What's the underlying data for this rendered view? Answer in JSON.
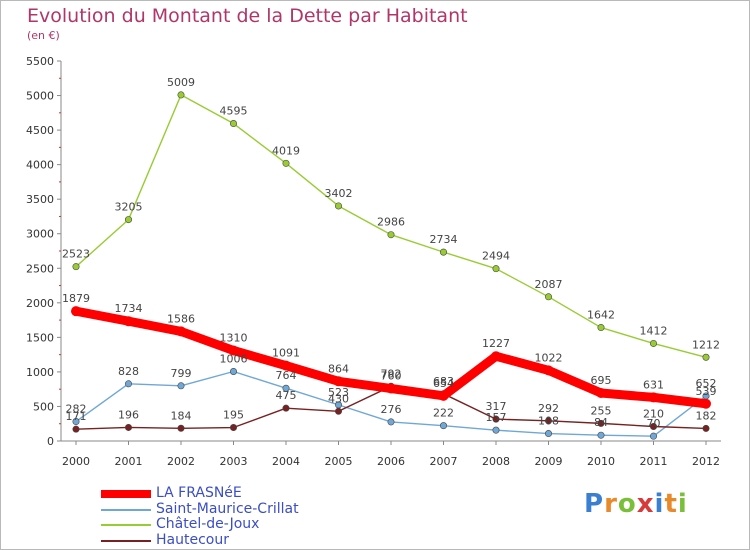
{
  "chart_data": {
    "type": "line",
    "title": "Evolution du Montant de la Dette par Habitant",
    "subtitle": "(en €)",
    "x": [
      "2000",
      "2001",
      "2002",
      "2003",
      "2004",
      "2005",
      "2006",
      "2007",
      "2008",
      "2009",
      "2010",
      "2011",
      "2012"
    ],
    "ylim": [
      0,
      5500
    ],
    "yticks": [
      "0",
      "500",
      "1000",
      "1500",
      "2000",
      "2500",
      "3000",
      "3500",
      "4000",
      "4500",
      "5000",
      "5500"
    ],
    "grid": false,
    "legend_position": "bottom-left",
    "series": [
      {
        "name": "LA FRASNéE",
        "color": "#ff0000",
        "values": [
          1879,
          1734,
          1586,
          1310,
          1091,
          864,
          760,
          654,
          1227,
          1022,
          695,
          631,
          539
        ],
        "labels": [
          "1879",
          "1734",
          "1586",
          "1310",
          "1091",
          "864",
          "760",
          "654",
          "1227",
          "1022",
          "695",
          "631",
          "539"
        ]
      },
      {
        "name": "Saint-Maurice-Crillat",
        "color": "#6fa8d6",
        "values": [
          282,
          828,
          799,
          1006,
          764,
          523,
          276,
          222,
          157,
          108,
          84,
          70,
          652
        ],
        "labels": [
          "282",
          "828",
          "799",
          "1006",
          "764",
          "523",
          "276",
          "222",
          "157",
          "108",
          "84",
          "70",
          "652"
        ]
      },
      {
        "name": "Châtel-de-Joux",
        "color": "#99cc33",
        "values": [
          2523,
          3205,
          5009,
          4595,
          4019,
          3402,
          2986,
          2734,
          2494,
          2087,
          1642,
          1412,
          1212
        ],
        "labels": [
          "2523",
          "3205",
          "5009",
          "4595",
          "4019",
          "3402",
          "2986",
          "2734",
          "2494",
          "2087",
          "1642",
          "1412",
          "1212"
        ]
      },
      {
        "name": "Hautecour",
        "color": "#772222",
        "values": [
          171,
          196,
          184,
          195,
          475,
          430,
          792,
          683,
          317,
          292,
          255,
          210,
          182
        ],
        "labels": [
          "171",
          "196",
          "184",
          "195",
          "475",
          "430",
          "792",
          "683",
          "317",
          "292",
          "255",
          "210",
          "182"
        ]
      }
    ]
  },
  "brand": {
    "letters": [
      "P",
      "r",
      "o",
      "x",
      "i",
      "t",
      "i"
    ],
    "colors": [
      "#3a7fd0",
      "#e8892a",
      "#7abf3a",
      "#d83a3a",
      "#3a7fd0",
      "#e8892a",
      "#7abf3a"
    ]
  }
}
